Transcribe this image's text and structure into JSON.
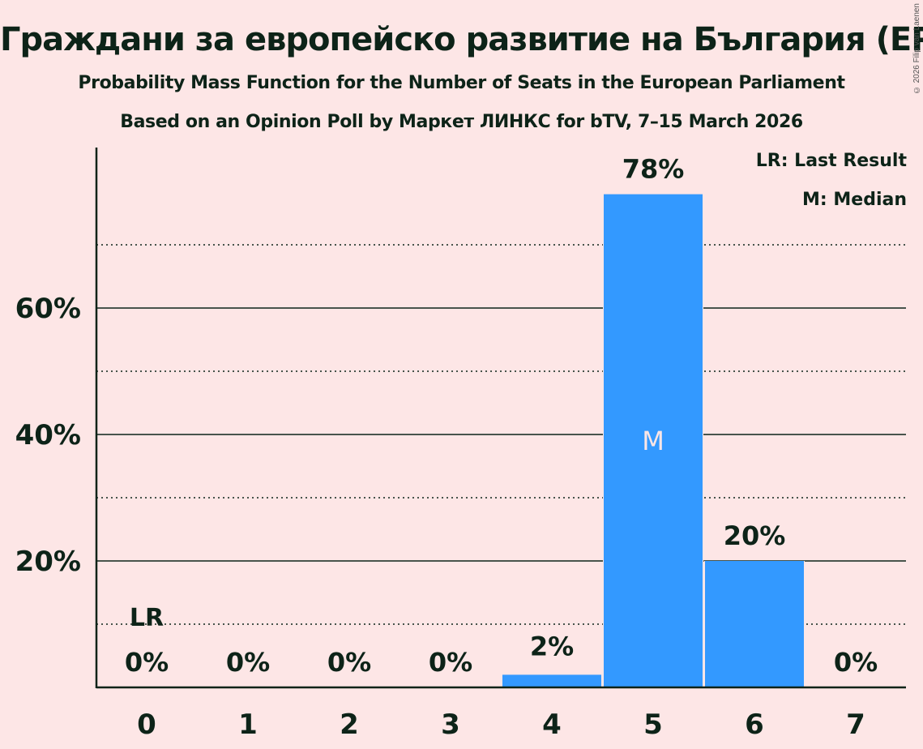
{
  "header": {
    "title": "Граждани за европейско развитие на България (EPP)",
    "subtitle1": "Probability Mass Function for the Number of Seats in the European Parliament",
    "subtitle2": "Based on an Opinion Poll by Маркет ЛИНКС for bTV, 7–15 March 2026",
    "copyright": "© 2026 Filip van Laenen"
  },
  "legend": {
    "lr": "LR: Last Result",
    "m": "M: Median"
  },
  "colors": {
    "bar": "#3399ff",
    "background": "#fde6e6",
    "text": "#0d2318"
  },
  "chart_data": {
    "type": "bar",
    "title": "Граждани за европейско развитие на България (EPP)",
    "subtitle": "Probability Mass Function for the Number of Seats in the European Parliament",
    "categories": [
      "0",
      "1",
      "2",
      "3",
      "4",
      "5",
      "6",
      "7"
    ],
    "values": [
      0,
      0,
      0,
      0,
      2,
      78,
      20,
      0
    ],
    "labels": [
      "0%",
      "0%",
      "0%",
      "0%",
      "2%",
      "78%",
      "20%",
      "0%"
    ],
    "xlabel": "",
    "ylabel": "",
    "ylim": [
      0,
      85
    ],
    "yticks": [
      "20%",
      "40%",
      "60%"
    ],
    "grid": {
      "solid": [
        20,
        40,
        60
      ],
      "dotted": [
        10,
        30,
        50,
        70
      ]
    },
    "annotations": [
      {
        "category": "0",
        "text": "LR",
        "meaning": "Last Result"
      },
      {
        "category": "5",
        "text": "M",
        "meaning": "Median"
      }
    ],
    "legend_position": "top-right"
  }
}
